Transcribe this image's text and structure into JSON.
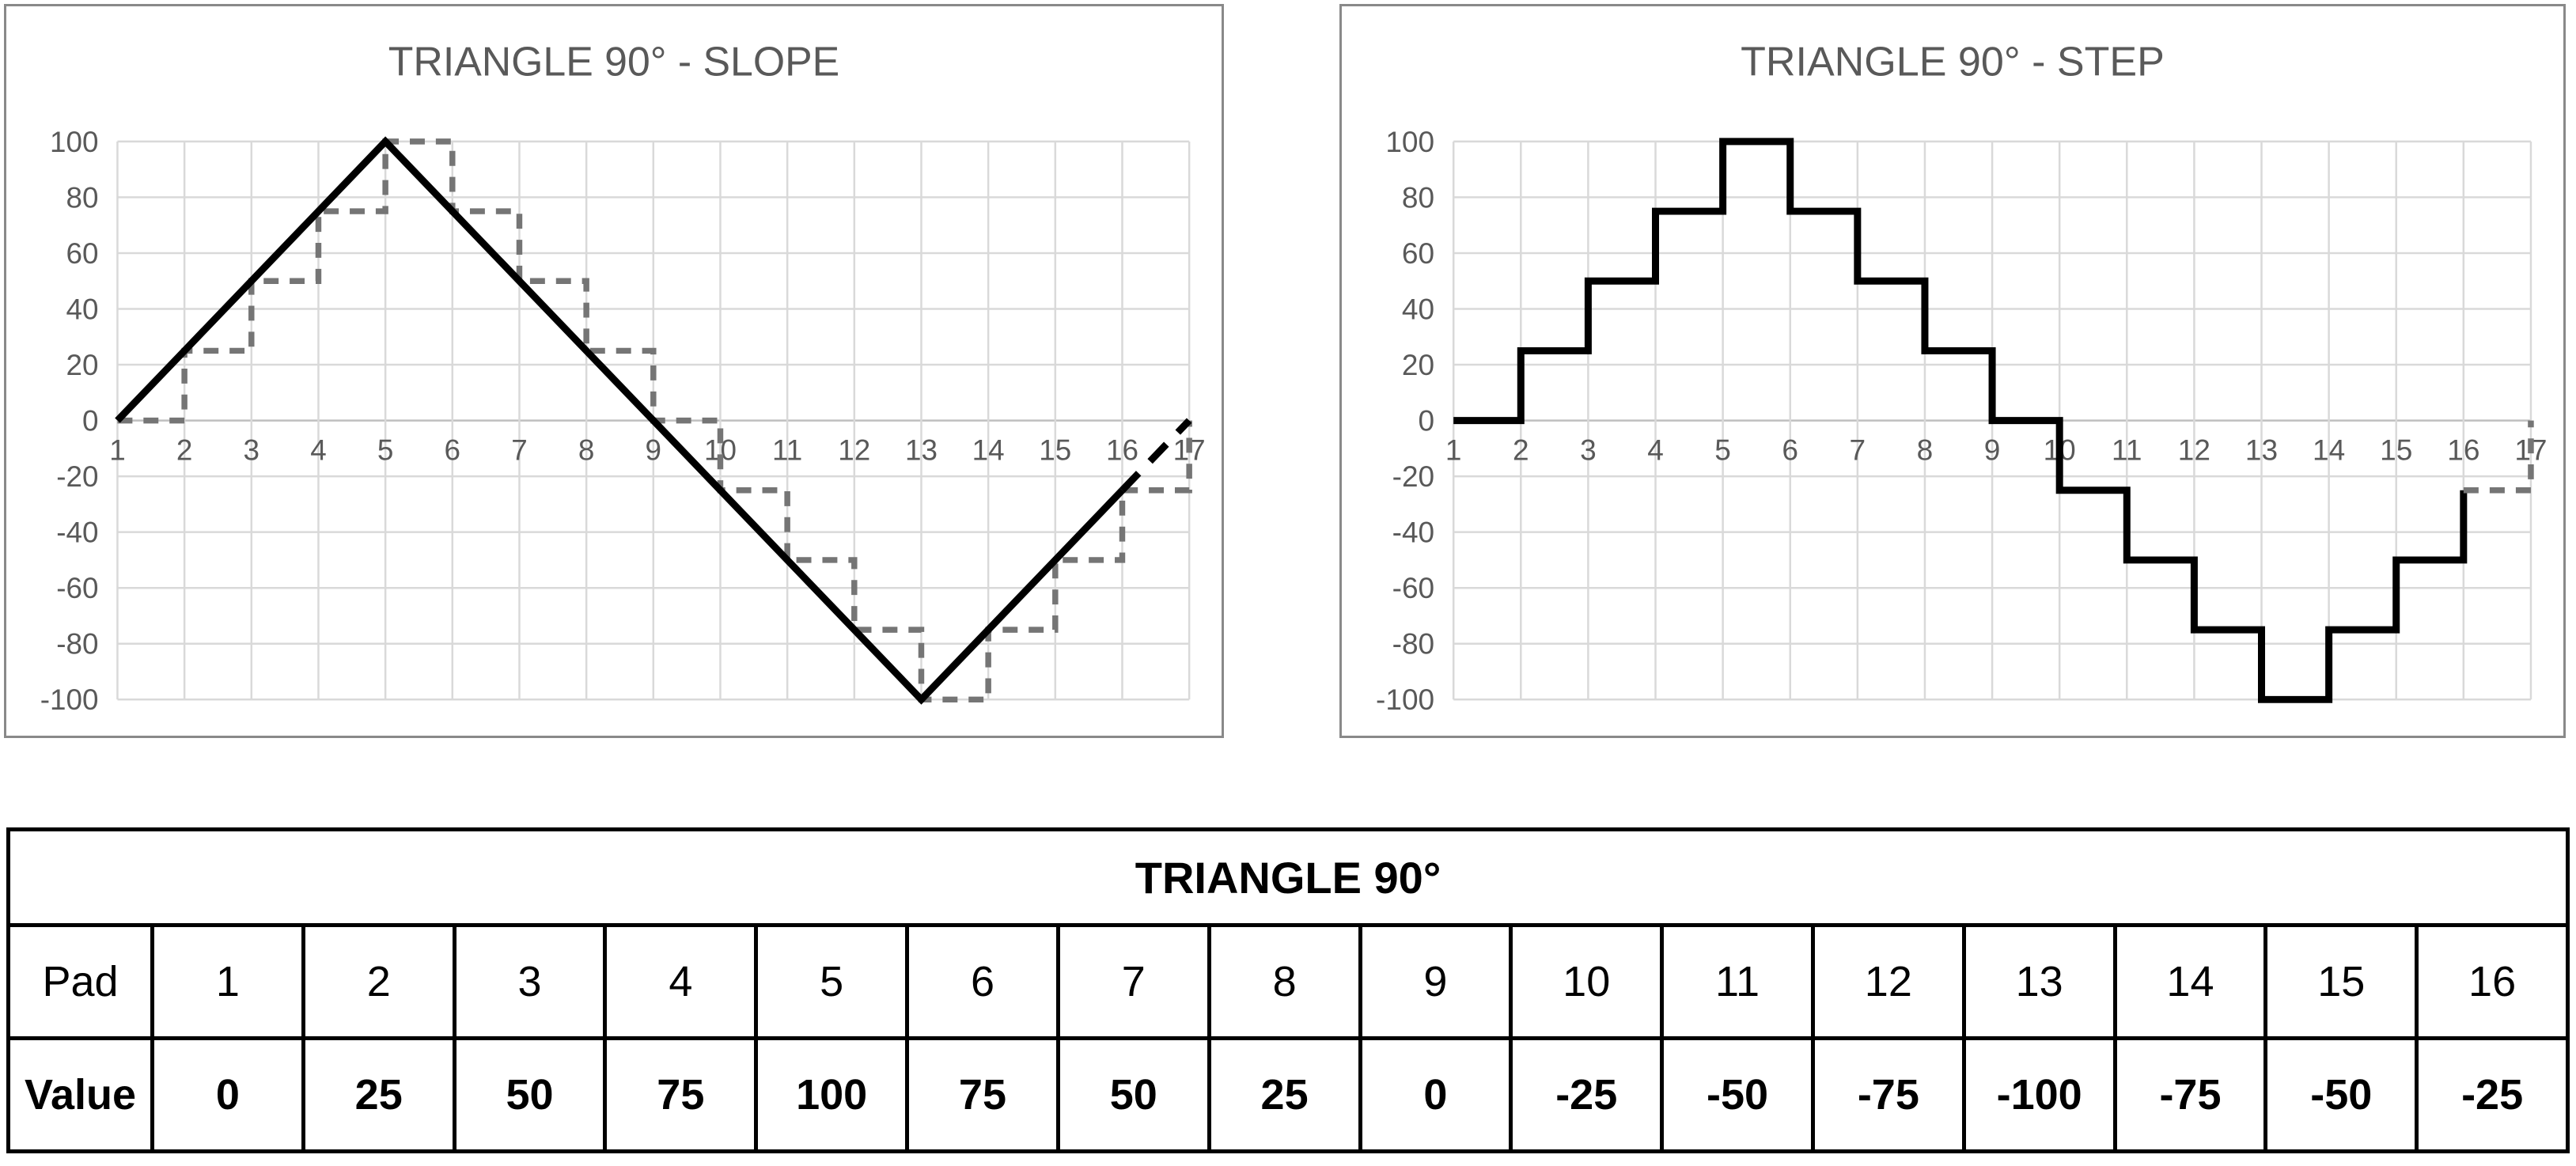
{
  "colors": {
    "chart_text": "#595959",
    "grid_line": "#d9d9d9",
    "axis_line": "#bfbfbf",
    "panel_border": "#898989",
    "series_black": "#000000",
    "series_gray": "#757575",
    "table_border": "#000000",
    "table_text": "#000000",
    "background": "#ffffff"
  },
  "chart_data": [
    {
      "type": "line",
      "title": "TRIANGLE 90° - SLOPE",
      "xlabel": "",
      "ylabel": "",
      "xlim": [
        1,
        17
      ],
      "ylim": [
        -100,
        100
      ],
      "xticks": [
        1,
        2,
        3,
        4,
        5,
        6,
        7,
        8,
        9,
        10,
        11,
        12,
        13,
        14,
        15,
        16,
        17
      ],
      "yticks": [
        100,
        80,
        60,
        40,
        20,
        0,
        -20,
        -40,
        -60,
        -80,
        -100
      ],
      "grid": true,
      "legend_position": "none",
      "series": [
        {
          "name": "step-preview",
          "style": "dashed-gray",
          "step": true,
          "x": [
            1,
            2,
            3,
            4,
            5,
            6,
            7,
            8,
            9,
            10,
            11,
            12,
            13,
            14,
            15,
            16,
            17
          ],
          "values": [
            0,
            25,
            50,
            75,
            100,
            75,
            50,
            25,
            0,
            -25,
            -50,
            -75,
            -100,
            -75,
            -50,
            -25,
            0
          ]
        },
        {
          "name": "slope",
          "style": "solid-black",
          "step": false,
          "x": [
            1,
            2,
            3,
            4,
            5,
            6,
            7,
            8,
            9,
            10,
            11,
            12,
            13,
            14,
            15,
            16
          ],
          "values": [
            0,
            25,
            50,
            75,
            100,
            75,
            50,
            25,
            0,
            -25,
            -50,
            -75,
            -100,
            -75,
            -50,
            -25
          ]
        },
        {
          "name": "slope-wrap-to-next-cycle",
          "style": "dashed-black",
          "step": false,
          "x": [
            16,
            17
          ],
          "values": [
            -25,
            0
          ]
        }
      ]
    },
    {
      "type": "line",
      "title": "TRIANGLE 90° - STEP",
      "xlabel": "",
      "ylabel": "",
      "xlim": [
        1,
        17
      ],
      "ylim": [
        -100,
        100
      ],
      "xticks": [
        1,
        2,
        3,
        4,
        5,
        6,
        7,
        8,
        9,
        10,
        11,
        12,
        13,
        14,
        15,
        16,
        17
      ],
      "yticks": [
        100,
        80,
        60,
        40,
        20,
        0,
        -20,
        -40,
        -60,
        -80,
        -100
      ],
      "grid": true,
      "legend_position": "none",
      "series": [
        {
          "name": "step",
          "style": "solid-black",
          "step": true,
          "x": [
            1,
            2,
            3,
            4,
            5,
            6,
            7,
            8,
            9,
            10,
            11,
            12,
            13,
            14,
            15,
            16
          ],
          "values": [
            0,
            25,
            50,
            75,
            100,
            75,
            50,
            25,
            0,
            -25,
            -50,
            -75,
            -100,
            -75,
            -50,
            -25
          ]
        },
        {
          "name": "step-wrap-to-next-cycle",
          "style": "dashed-gray",
          "step": true,
          "x": [
            16,
            17
          ],
          "values": [
            -25,
            0
          ]
        }
      ]
    }
  ],
  "table": {
    "title": "TRIANGLE 90°",
    "row_labels": [
      "Pad",
      "Value"
    ],
    "pads": [
      "1",
      "2",
      "3",
      "4",
      "5",
      "6",
      "7",
      "8",
      "9",
      "10",
      "11",
      "12",
      "13",
      "14",
      "15",
      "16"
    ],
    "values": [
      "0",
      "25",
      "50",
      "75",
      "100",
      "75",
      "50",
      "25",
      "0",
      "-25",
      "-50",
      "-75",
      "-100",
      "-75",
      "-50",
      "-25"
    ]
  }
}
